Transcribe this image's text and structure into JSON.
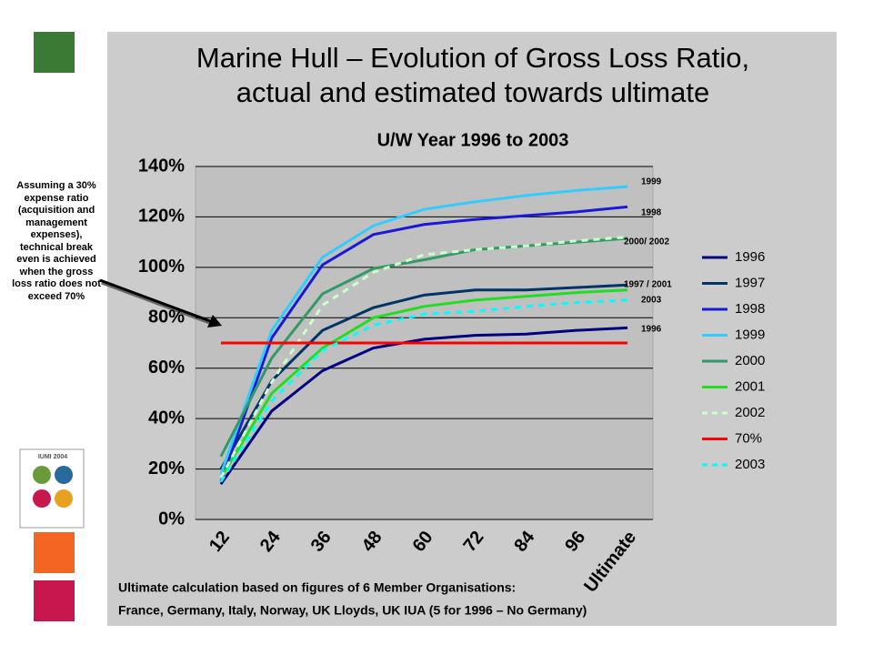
{
  "chart_data": {
    "type": "line",
    "title": [
      "Marine Hull – Evolution of Gross Loss Ratio,",
      "actual and estimated towards ultimate"
    ],
    "subtitle": "U/W Year 1996 to 2003",
    "categories": [
      "12",
      "24",
      "36",
      "48",
      "60",
      "72",
      "84",
      "96",
      "Ultimate"
    ],
    "ylim": [
      0,
      140
    ],
    "yticks": [
      {
        "value": 0,
        "label": "0%"
      },
      {
        "value": 20,
        "label": "20%"
      },
      {
        "value": 40,
        "label": "40%"
      },
      {
        "value": 60,
        "label": "60%"
      },
      {
        "value": 80,
        "label": "80%"
      },
      {
        "value": 100,
        "label": "100%"
      },
      {
        "value": 120,
        "label": "120%"
      },
      {
        "value": 140,
        "label": "140%"
      }
    ],
    "grid": true,
    "legend": "right",
    "series": [
      {
        "name": "1996",
        "color": "#000080",
        "values": [
          14,
          43,
          59,
          68,
          71.5,
          73,
          73.5,
          75,
          76
        ]
      },
      {
        "name": "1997",
        "color": "#003366",
        "values": [
          20,
          55,
          75,
          84,
          89,
          91,
          91,
          92,
          93
        ]
      },
      {
        "name": "1998",
        "color": "#1a1ad6",
        "values": [
          15,
          72,
          101,
          113,
          117,
          119,
          120.5,
          122,
          124
        ]
      },
      {
        "name": "1999",
        "color": "#33ccff",
        "values": [
          18,
          75,
          104,
          116.5,
          123,
          126,
          128.5,
          130.5,
          132
        ]
      },
      {
        "name": "2000",
        "color": "#339966",
        "values": [
          25,
          64,
          89.5,
          99.5,
          103,
          107,
          108.5,
          110,
          111.5
        ]
      },
      {
        "name": "2001",
        "color": "#22dd22",
        "values": [
          16.5,
          50,
          68,
          80,
          84.5,
          87,
          88.5,
          90,
          91
        ]
      },
      {
        "name": "2002",
        "color": "#ccffcc",
        "dashed": true,
        "values": [
          16.5,
          54.5,
          85,
          98,
          105,
          107,
          108.5,
          110.5,
          112
        ]
      },
      {
        "name": "70%",
        "color": "#ff0000",
        "values": [
          70,
          70,
          70,
          70,
          70,
          70,
          70,
          70,
          70
        ]
      },
      {
        "name": "2003",
        "color": "#00ffff",
        "dashed": true,
        "values": [
          15,
          47,
          67,
          77,
          81.5,
          82.5,
          84.5,
          86,
          87
        ]
      }
    ],
    "annotations": [
      "1999",
      "1998",
      "2000/ 2002",
      "1997 / 2001",
      "2003",
      "1996"
    ],
    "note": "Assuming a 30% expense ratio (acquisition and management expenses), technical break even is achieved when the gross loss ratio does not exceed 70%",
    "footer": [
      "Ultimate calculation based on figures of 6 Member Organisations:",
      "France, Germany, Italy, Norway, UK Lloyds, UK IUA (5 for 1996 – No Germany)"
    ],
    "logo_text": "IUMI 2004"
  }
}
